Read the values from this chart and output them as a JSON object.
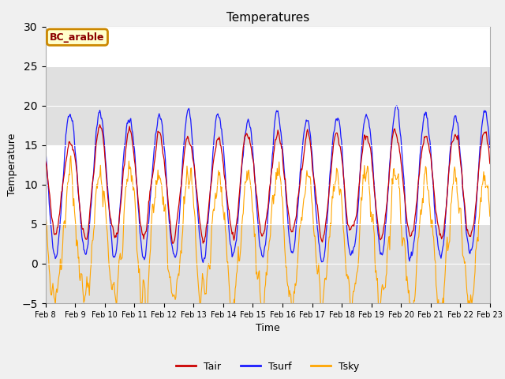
{
  "title": "Temperatures",
  "xlabel": "Time",
  "ylabel": "Temperature",
  "annotation": "BC_arable",
  "legend_labels": [
    "Tair",
    "Tsurf",
    "Tsky"
  ],
  "line_colors": [
    "#cc0000",
    "#1a1aff",
    "#ffa500"
  ],
  "ylim": [
    -5,
    30
  ],
  "xlim": [
    0,
    15
  ],
  "x_ticks_labels": [
    "Feb 8",
    "Feb 9",
    "Feb 10",
    "Feb 11",
    "Feb 12",
    "Feb 13",
    "Feb 14",
    "Feb 15",
    "Feb 16",
    "Feb 17",
    "Feb 18",
    "Feb 19",
    "Feb 20",
    "Feb 21",
    "Feb 22",
    "Feb 23"
  ],
  "n_days": 15,
  "n_per_day": 48,
  "annotation_bbox": {
    "facecolor": "#ffffcc",
    "edgecolor": "#cc8800",
    "linewidth": 2
  },
  "bg_color": "#ffffff",
  "fig_bg_color": "#f0f0f0",
  "band_color": "#e0e0e0",
  "band_ranges": [
    [
      -5,
      5
    ],
    [
      15,
      25
    ]
  ],
  "yticks": [
    -5,
    0,
    5,
    10,
    15,
    20,
    25,
    30
  ]
}
